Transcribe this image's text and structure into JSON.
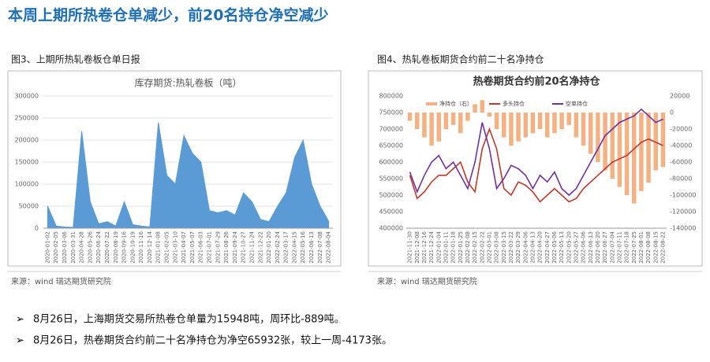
{
  "title": "本周上期所热卷仓单减少，前20名持仓净空减少",
  "figures": [
    {
      "caption": "图3、上期所热轧卷板仓单日报",
      "source": "来源：wind   瑞达期货研究院"
    },
    {
      "caption": "图4、热轧卷板期货合约前二十名净持仓",
      "source": "来源：wind   瑞达期货研究院"
    }
  ],
  "bullets": [
    "8月26日，上海期货交易所热卷仓单量为15948吨，周环比-889吨。",
    "8月26日，热卷期货合约前二十名净持仓为净空65932张，较上一周-4173张。"
  ],
  "chart_data": [
    {
      "type": "area",
      "title": "库存期货:热轧卷板（吨）",
      "color": "#5b9bd5",
      "categories": [
        "2020-01-02",
        "2020-02-05",
        "2020-03-06",
        "2020-03-31",
        "2020-04-28",
        "2020-05-26",
        "2020-06-24",
        "2020-07-22",
        "2020-08-19",
        "2020-09-16",
        "2020-10-19",
        "2020-11-16",
        "2020-12-14",
        "2021-01-08",
        "2021-02-05",
        "2021-03-10",
        "2021-04-07",
        "2021-05-07",
        "2021-06-03",
        "2021-07-01",
        "2021-07-29",
        "2021-08-26",
        "2021-09-24",
        "2021-10-27",
        "2021-11-24",
        "2021-12-22",
        "2022-01-20",
        "2022-02-24",
        "2022-03-17",
        "2022-04-15",
        "2022-05-16",
        "2022-06-13",
        "2022-07-08",
        "2022-08-04"
      ],
      "values": [
        50000,
        5000,
        3000,
        2000,
        220000,
        60000,
        10000,
        15000,
        5000,
        60000,
        8000,
        5000,
        3000,
        240000,
        120000,
        100000,
        210000,
        170000,
        150000,
        40000,
        35000,
        40000,
        30000,
        80000,
        60000,
        20000,
        15000,
        50000,
        80000,
        160000,
        200000,
        100000,
        50000,
        16000
      ],
      "ylim": [
        0,
        300000
      ],
      "yticks": [
        0,
        50000,
        100000,
        150000,
        200000,
        250000,
        300000
      ]
    },
    {
      "type": "combo",
      "title": "热卷期货合约前20名净持仓",
      "categories": [
        "2021-11-30",
        "2021-12-08",
        "2021-12-16",
        "2021-12-24",
        "2022-01-04",
        "2022-01-11",
        "2022-01-18",
        "2022-01-25",
        "2022-02-08",
        "2022-02-15",
        "2022-02-22",
        "2022-03-01",
        "2022-03-08",
        "2022-03-15",
        "2022-03-22",
        "2022-03-29",
        "2022-04-06",
        "2022-04-13",
        "2022-04-20",
        "2022-04-27",
        "2022-05-06",
        "2022-05-13",
        "2022-05-20",
        "2022-05-27",
        "2022-06-06",
        "2022-06-13",
        "2022-06-20",
        "2022-06-27",
        "2022-07-04",
        "2022-07-11",
        "2022-07-18",
        "2022-07-25",
        "2022-08-01",
        "2022-08-08",
        "2022-08-15",
        "2022-08-22"
      ],
      "series": [
        {
          "name": "净持仓（右）",
          "type": "bar",
          "axis": "y2",
          "color": "#f4b183",
          "values": [
            -10000,
            -20000,
            -30000,
            -40000,
            -35000,
            -20000,
            -15000,
            -25000,
            -10000,
            10000,
            15000,
            -5000,
            -20000,
            -30000,
            -40000,
            -35000,
            -30000,
            -25000,
            -20000,
            -30000,
            -25000,
            -20000,
            -15000,
            -30000,
            -40000,
            -50000,
            -60000,
            -70000,
            -80000,
            -90000,
            -100000,
            -110000,
            -95000,
            -85000,
            -70000,
            -65932
          ]
        },
        {
          "name": "多头持仓",
          "type": "line",
          "color": "#c0392b",
          "values": [
            560000,
            490000,
            510000,
            540000,
            560000,
            560000,
            580000,
            600000,
            540000,
            510000,
            640000,
            700000,
            640000,
            520000,
            500000,
            540000,
            530000,
            510000,
            480000,
            500000,
            520000,
            500000,
            480000,
            490000,
            520000,
            540000,
            560000,
            580000,
            600000,
            610000,
            620000,
            640000,
            660000,
            670000,
            660000,
            650000
          ]
        },
        {
          "name": "空单持仓",
          "type": "line",
          "color": "#7030a0",
          "values": [
            570000,
            510000,
            560000,
            600000,
            620000,
            580000,
            600000,
            560000,
            520000,
            600000,
            720000,
            640000,
            520000,
            550000,
            590000,
            580000,
            560000,
            520000,
            560000,
            540000,
            570000,
            520000,
            500000,
            520000,
            560000,
            600000,
            640000,
            680000,
            700000,
            720000,
            730000,
            740000,
            760000,
            740000,
            720000,
            730000
          ]
        }
      ],
      "ylim": [
        400000,
        800000
      ],
      "yticks": [
        400000,
        450000,
        500000,
        550000,
        600000,
        650000,
        700000,
        750000,
        800000
      ],
      "y2lim": [
        -140000,
        20000
      ],
      "y2ticks": [
        -140000,
        -120000,
        -100000,
        -80000,
        -60000,
        -40000,
        -20000,
        0,
        20000
      ]
    }
  ]
}
